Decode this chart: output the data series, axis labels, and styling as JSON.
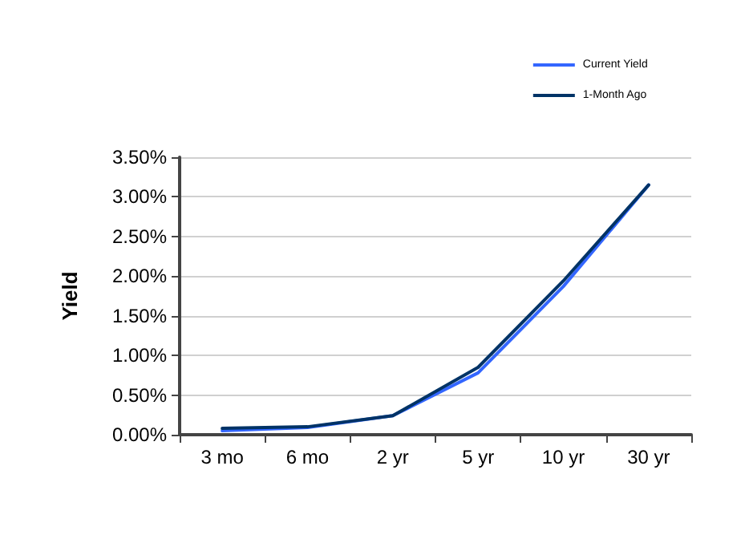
{
  "chart_data": {
    "type": "line",
    "ylabel": "Yield",
    "categories": [
      "3 mo",
      "6 mo",
      "2 yr",
      "5 yr",
      "10 yr",
      "30 yr"
    ],
    "series": [
      {
        "name": "Current Yield",
        "color": "#3366ff",
        "values": [
          0.05,
          0.09,
          0.24,
          0.78,
          1.87,
          3.15
        ]
      },
      {
        "name": "1-Month Ago",
        "color": "#003366",
        "values": [
          0.08,
          0.1,
          0.24,
          0.85,
          1.94,
          3.15
        ]
      }
    ],
    "ylim": [
      0,
      3.5
    ],
    "yticks": [
      {
        "value": 0,
        "label": "0.00%"
      },
      {
        "value": 0.5,
        "label": "0.50%"
      },
      {
        "value": 1,
        "label": "1.00%"
      },
      {
        "value": 1.5,
        "label": "1.50%"
      },
      {
        "value": 2,
        "label": "2.00%"
      },
      {
        "value": 2.5,
        "label": "2.50%"
      },
      {
        "value": 3,
        "label": "3.00%"
      },
      {
        "value": 3.5,
        "label": "3.50%"
      }
    ],
    "grid": "y",
    "legend": "top right",
    "marker": "none",
    "line_style": "solid"
  }
}
